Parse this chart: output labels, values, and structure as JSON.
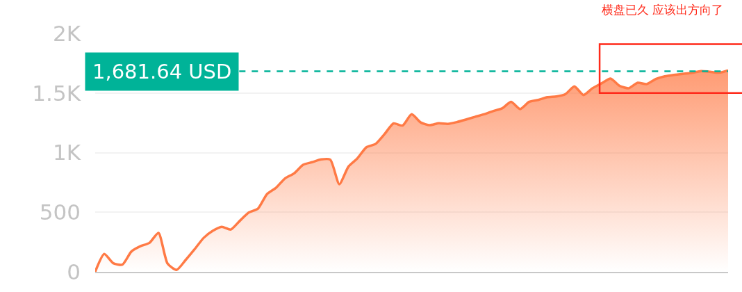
{
  "chart_data": {
    "type": "area",
    "categories": [
      null,
      null,
      null,
      null,
      null,
      null,
      null,
      null,
      null,
      null,
      null,
      null,
      null,
      null,
      null,
      null,
      null,
      null,
      null,
      null,
      null,
      null,
      null,
      null,
      null,
      null,
      null,
      null,
      null,
      null,
      null,
      null,
      null,
      null,
      null,
      null,
      null,
      null,
      null,
      null,
      null,
      null,
      null,
      null,
      null,
      null,
      null,
      null,
      null,
      null,
      null,
      null,
      null,
      null,
      null,
      null,
      null,
      null,
      null,
      null,
      null,
      null,
      null,
      null,
      null,
      null,
      null,
      null,
      null,
      null,
      null
    ],
    "series": [
      {
        "color": "#ff7a45",
        "values": [
          0,
          150,
          72,
          60,
          170,
          215,
          243,
          327,
          70,
          16,
          99,
          190,
          285,
          344,
          378,
          355,
          428,
          498,
          530,
          652,
          705,
          784,
          826,
          898,
          920,
          943,
          941,
          735,
          881,
          952,
          1045,
          1072,
          1155,
          1245,
          1227,
          1322,
          1253,
          1230,
          1246,
          1241,
          1256,
          1277,
          1300,
          1321,
          1348,
          1371,
          1425,
          1365,
          1426,
          1442,
          1465,
          1471,
          1490,
          1555,
          1483,
          1540,
          1581,
          1621,
          1560,
          1540,
          1586,
          1575,
          1617,
          1640,
          1652,
          1661,
          1669,
          1684,
          1678,
          1670,
          1690
        ]
      }
    ],
    "ylim": [
      0,
      2000
    ],
    "yticks": [
      0,
      500,
      {
        "value": 1000,
        "label": "1K"
      },
      {
        "value": 1500,
        "label": "1.5K"
      },
      {
        "value": 2000,
        "label": "2K"
      }
    ],
    "grid": "y",
    "marker": "none",
    "line_style": "solid",
    "ref_lines": [
      {
        "axis": "y",
        "value": 1681.64,
        "label": "1,681.64 USD",
        "color": "#00b398",
        "line_style": "dashed"
      }
    ],
    "annotations": [
      "横盘已久 应该出方向了"
    ]
  }
}
